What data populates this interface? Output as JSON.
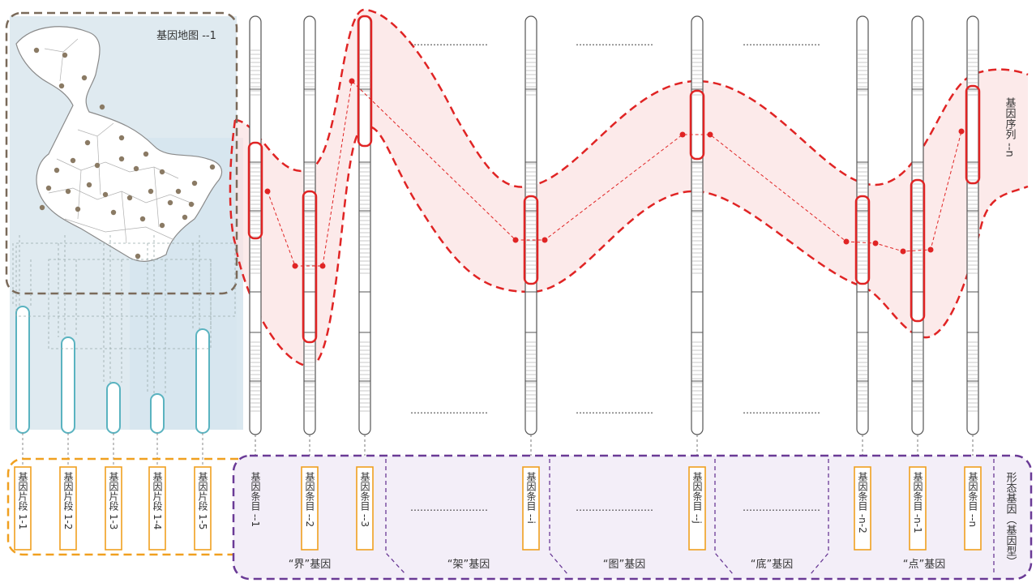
{
  "map": {
    "title": "基因地图 --1",
    "fragments": [
      "基因片段 1-1",
      "基因片段 1-2",
      "基因片段 1-3",
      "基因片段 1-4",
      "基因片段 1-5"
    ]
  },
  "sequence_label": "基因序列 --n",
  "form_gene_label": "形态基因（基因型）",
  "entries": [
    {
      "label": "基因条目 --1",
      "highlight": false
    },
    {
      "label": "基因条目 --2",
      "highlight": true
    },
    {
      "label": "基因条目 --3",
      "highlight": true
    },
    {
      "label": "基因条目 --i",
      "highlight": true
    },
    {
      "label": "基因条目 --j",
      "highlight": true
    },
    {
      "label": "基因条目 -n-2",
      "highlight": true
    },
    {
      "label": "基因条目 -n-1",
      "highlight": true
    },
    {
      "label": "基因条目 --n",
      "highlight": true
    }
  ],
  "categories": [
    "“界”基因",
    "“架”基因",
    "“图”基因",
    "“底”基因",
    "“点”基因"
  ],
  "ellipsis": "……………………",
  "colors": {
    "red": "#e02424",
    "orange": "#f0a020",
    "purple": "#6a3a96",
    "teal": "#5ab3c0",
    "brown": "#7a6a5a",
    "map_bg": "#dfeaf0"
  }
}
